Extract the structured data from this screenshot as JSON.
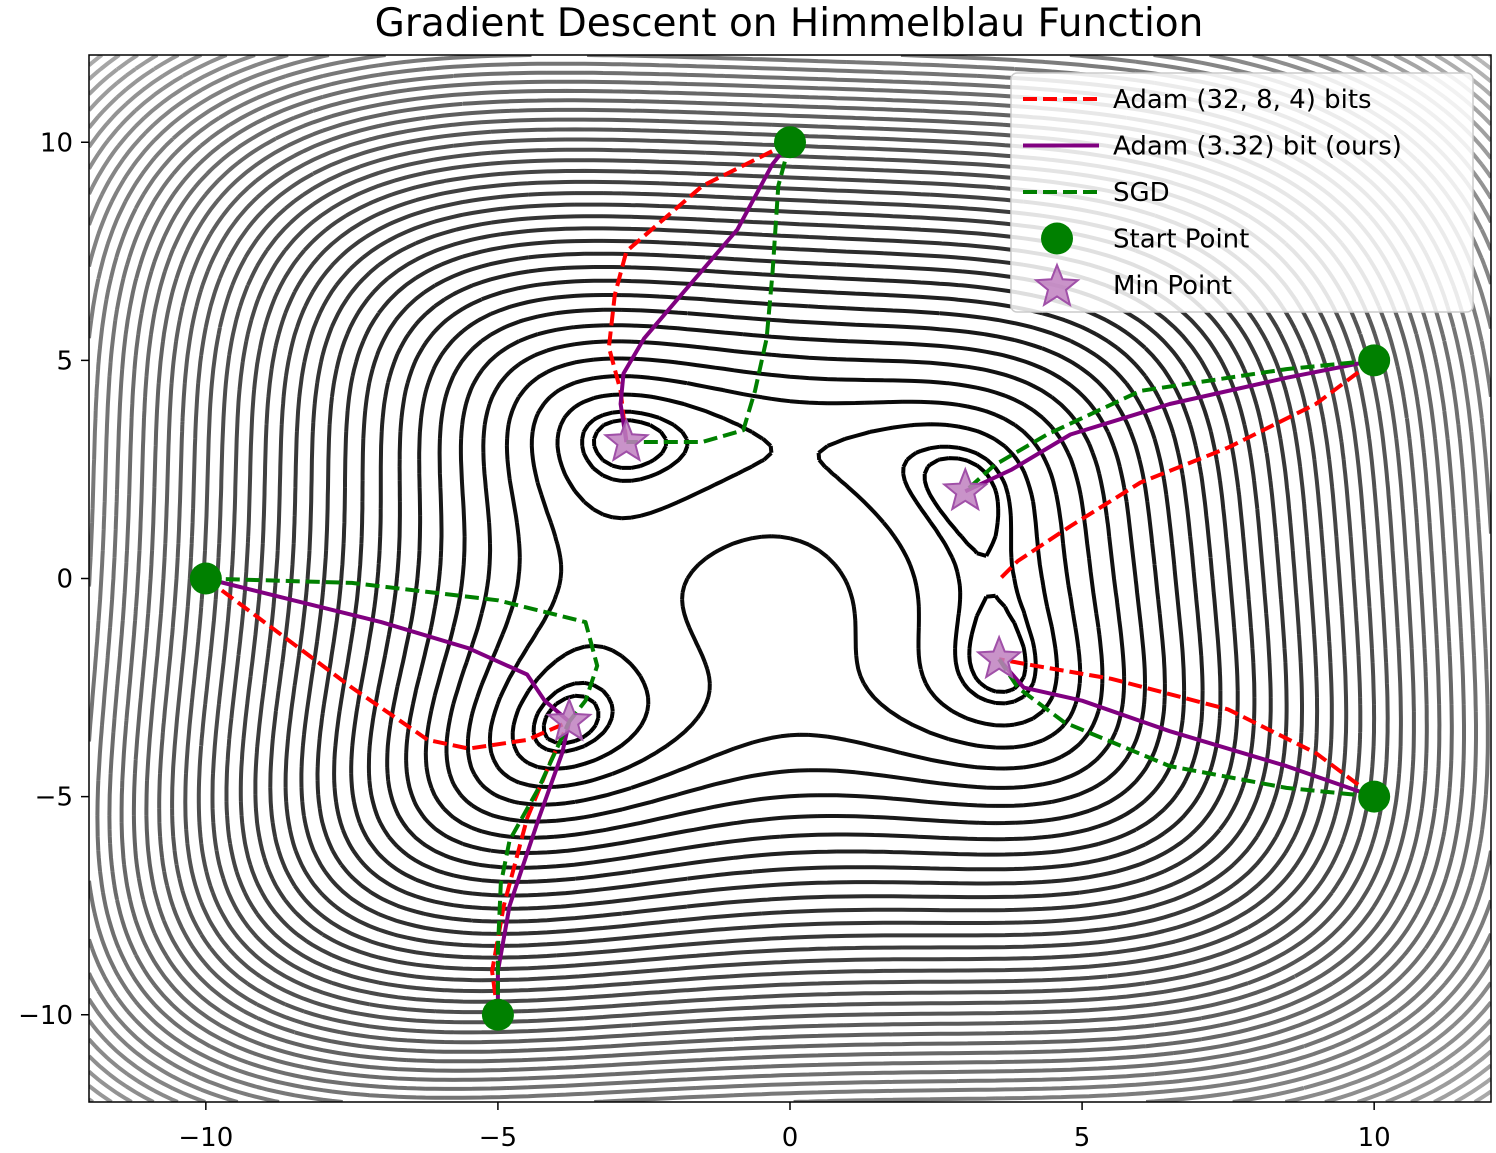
{
  "chart_data": {
    "type": "line",
    "title": "Gradient Descent on Himmelblau Function",
    "xlabel": "",
    "ylabel": "",
    "xlim": [
      -12,
      12
    ],
    "ylim": [
      -12,
      12
    ],
    "xticks": [
      -10,
      -5,
      0,
      5,
      10
    ],
    "yticks": [
      -10,
      -5,
      0,
      5,
      10
    ],
    "xtick_labels": [
      "−10",
      "−5",
      "0",
      "5",
      "10"
    ],
    "ytick_labels": [
      "−10",
      "−5",
      "0",
      "5",
      "10"
    ],
    "grid": false,
    "legend_position": "top-right",
    "background": "contour plot of the Himmelblau function (black to light gray contour lines)",
    "legend": [
      {
        "label": "Adam (32, 8, 4) bits",
        "style": "dashed",
        "color": "#ff0000"
      },
      {
        "label": "Adam (3.32) bit (ours)",
        "style": "solid",
        "color": "#800080"
      },
      {
        "label": "SGD",
        "style": "dashed",
        "color": "#008000"
      },
      {
        "label": "Start Point",
        "marker": "circle",
        "color": "#008000"
      },
      {
        "label": "Min Point",
        "marker": "star",
        "color": "#c080c0"
      }
    ],
    "start_points": [
      [
        0,
        10
      ],
      [
        10,
        5
      ],
      [
        -10,
        0
      ],
      [
        10,
        -5
      ],
      [
        -5,
        -10
      ]
    ],
    "min_points": [
      [
        -2.8,
        3.13
      ],
      [
        3.0,
        2.0
      ],
      [
        -3.78,
        -3.28
      ],
      [
        3.58,
        -1.85
      ]
    ],
    "series": [
      {
        "name": "Adam (32, 8, 4) bits",
        "color": "#ff0000",
        "style": "dashed",
        "paths": [
          [
            [
              0,
              10
            ],
            [
              -1.5,
              9.0
            ],
            [
              -2.8,
              7.5
            ],
            [
              -3.0,
              6.5
            ],
            [
              -3.1,
              5.3
            ],
            [
              -2.9,
              4.3
            ],
            [
              -2.8,
              3.13
            ]
          ],
          [
            [
              10,
              5
            ],
            [
              9.0,
              4.0
            ],
            [
              7.5,
              3.0
            ],
            [
              6.0,
              2.2
            ],
            [
              4.8,
              1.2
            ],
            [
              3.9,
              0.4
            ],
            [
              3.6,
              0.0
            ]
          ],
          [
            [
              -10,
              0
            ],
            [
              -9.0,
              -1.0
            ],
            [
              -7.5,
              -2.5
            ],
            [
              -6.2,
              -3.7
            ],
            [
              -5.5,
              -3.9
            ],
            [
              -4.5,
              -3.7
            ],
            [
              -3.78,
              -3.28
            ]
          ],
          [
            [
              10,
              -5
            ],
            [
              9.0,
              -4.0
            ],
            [
              7.5,
              -3.0
            ],
            [
              5.5,
              -2.3
            ],
            [
              4.2,
              -2.0
            ],
            [
              3.58,
              -1.85
            ]
          ],
          [
            [
              -5,
              -10
            ],
            [
              -5.1,
              -9.0
            ],
            [
              -4.9,
              -7.5
            ],
            [
              -4.5,
              -5.5
            ],
            [
              -4.1,
              -4.2
            ],
            [
              -3.78,
              -3.28
            ]
          ]
        ]
      },
      {
        "name": "Adam (3.32) bit (ours)",
        "color": "#800080",
        "style": "solid",
        "paths": [
          [
            [
              0,
              10
            ],
            [
              -0.3,
              9.5
            ],
            [
              -0.9,
              8.0
            ],
            [
              -1.8,
              6.6
            ],
            [
              -2.5,
              5.5
            ],
            [
              -2.85,
              4.7
            ],
            [
              -2.9,
              4.0
            ],
            [
              -2.8,
              3.13
            ]
          ],
          [
            [
              10,
              5
            ],
            [
              8.5,
              4.6
            ],
            [
              6.5,
              4.0
            ],
            [
              4.8,
              3.3
            ],
            [
              3.8,
              2.5
            ],
            [
              3.0,
              2.0
            ]
          ],
          [
            [
              -10,
              0
            ],
            [
              -8.5,
              -0.5
            ],
            [
              -7.0,
              -1.0
            ],
            [
              -5.5,
              -1.6
            ],
            [
              -4.5,
              -2.2
            ],
            [
              -4.2,
              -2.8
            ],
            [
              -3.78,
              -3.28
            ]
          ],
          [
            [
              10,
              -5
            ],
            [
              8.5,
              -4.3
            ],
            [
              6.5,
              -3.5
            ],
            [
              5.0,
              -2.8
            ],
            [
              4.0,
              -2.5
            ],
            [
              3.58,
              -1.85
            ]
          ],
          [
            [
              -5,
              -10
            ],
            [
              -5.0,
              -9.0
            ],
            [
              -4.8,
              -7.5
            ],
            [
              -4.3,
              -5.5
            ],
            [
              -3.9,
              -4.0
            ],
            [
              -3.78,
              -3.28
            ]
          ]
        ]
      },
      {
        "name": "SGD",
        "color": "#008000",
        "style": "dashed",
        "paths": [
          [
            [
              0,
              10
            ],
            [
              -0.2,
              9.0
            ],
            [
              -0.3,
              7.0
            ],
            [
              -0.4,
              5.5
            ],
            [
              -0.6,
              4.3
            ],
            [
              -0.8,
              3.4
            ],
            [
              -1.5,
              3.13
            ],
            [
              -2.8,
              3.13
            ]
          ],
          [
            [
              10,
              5
            ],
            [
              8.5,
              4.8
            ],
            [
              6.0,
              4.3
            ],
            [
              4.4,
              3.3
            ],
            [
              3.5,
              2.6
            ],
            [
              3.0,
              2.0
            ]
          ],
          [
            [
              -10,
              0
            ],
            [
              -7.5,
              -0.1
            ],
            [
              -5.0,
              -0.5
            ],
            [
              -3.5,
              -1.0
            ],
            [
              -3.3,
              -2.0
            ],
            [
              -3.5,
              -2.8
            ],
            [
              -3.78,
              -3.28
            ]
          ],
          [
            [
              10,
              -5
            ],
            [
              8.5,
              -4.8
            ],
            [
              6.5,
              -4.3
            ],
            [
              4.7,
              -3.3
            ],
            [
              3.9,
              -2.5
            ],
            [
              3.58,
              -1.85
            ]
          ],
          [
            [
              -5,
              -10
            ],
            [
              -5.0,
              -8.5
            ],
            [
              -4.95,
              -7.0
            ],
            [
              -4.8,
              -6.0
            ],
            [
              -4.3,
              -4.8
            ],
            [
              -3.78,
              -3.28
            ]
          ]
        ]
      }
    ]
  }
}
